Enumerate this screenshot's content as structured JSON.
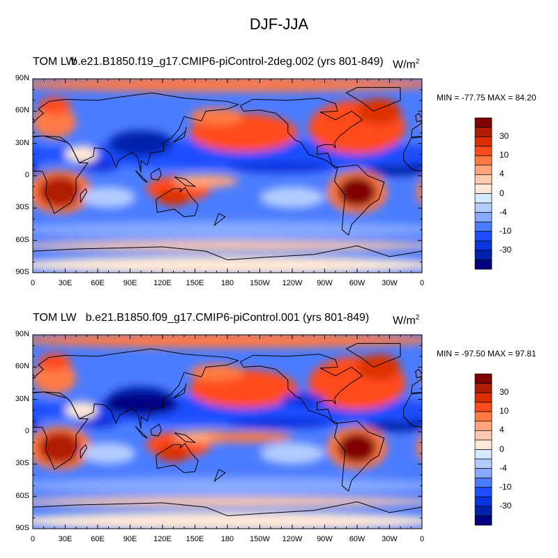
{
  "figure_title": "DJF-JJA",
  "colorbar": {
    "labels": [
      "30",
      "10",
      "4",
      "0",
      "-4",
      "-10",
      "-30"
    ],
    "colors": [
      "#800000",
      "#b01e00",
      "#db3100",
      "#ff4c1c",
      "#ff7a45",
      "#ffa47c",
      "#ffc9ad",
      "#ffe8d6",
      "#d6e8ff",
      "#b4ccff",
      "#88a9ff",
      "#4b7cff",
      "#1c4dff",
      "#0833dd",
      "#0021ab",
      "#000080"
    ]
  },
  "panels": [
    {
      "left_string": "TOM LW",
      "center_string": "b.e21.B1850.f19_g17.CMIP6-piControl-2deg.002 (yrs 801-849)",
      "units": "W/m",
      "units_sup": "2",
      "minmax": "MIN = -77.75 MAX =  84.20"
    },
    {
      "left_string": "TOM LW",
      "center_string": "b.e21.B1850.f09_g17.CMIP6-piControl.001 (yrs 801-849)",
      "units": "W/m",
      "units_sup": "2",
      "minmax": "MIN = -97.50 MAX =  97.81"
    }
  ],
  "axes": {
    "lat_labels": [
      "90N",
      "60N",
      "30N",
      "0",
      "30S",
      "60S",
      "90S"
    ],
    "lon_labels": [
      "0",
      "30E",
      "60E",
      "90E",
      "120E",
      "150E",
      "180",
      "150W",
      "120W",
      "90W",
      "60W",
      "30W",
      "0"
    ]
  }
}
